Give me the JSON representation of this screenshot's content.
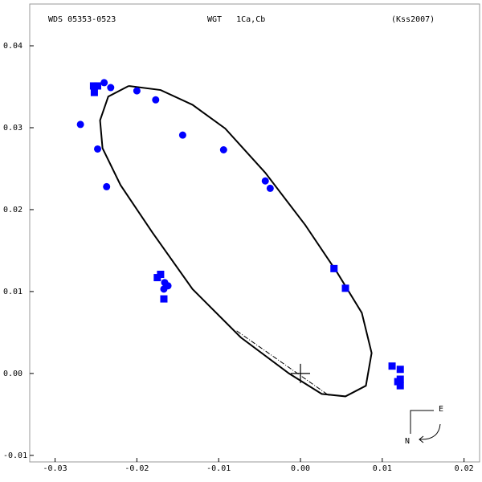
{
  "chart_data": {
    "type": "scatter",
    "title": "WDS 05353-0523",
    "subtitle": "WGT   1Ca,Cb",
    "reference": "(Kss2007)",
    "compass": {
      "east": "E",
      "north": "N"
    },
    "xlim": [
      -0.0331,
      0.0219
    ],
    "ylim": [
      -0.0108,
      0.0451
    ],
    "xticks": [
      -0.03,
      -0.02,
      -0.01,
      {
        "value": 0,
        "label": "0.00"
      },
      0.01,
      0.02
    ],
    "yticks": [
      0.04,
      0.03,
      0.02,
      0.01,
      {
        "value": 0,
        "label": "0.00"
      },
      -0.01
    ],
    "grid": false,
    "primary": {
      "x": 0,
      "y": 0
    },
    "orbit": {
      "color": "#000000",
      "x": [
        -0.021,
        -0.0171,
        -0.0132,
        -0.0092,
        -0.0043,
        0.0006,
        0.0045,
        0.0075,
        0.0087,
        0.008,
        0.0055,
        0.0026,
        -0.0014,
        -0.0073,
        -0.0132,
        -0.0181,
        -0.022,
        -0.0242,
        -0.0245,
        -0.0235,
        -0.021
      ],
      "y": [
        0.0351,
        0.0346,
        0.0328,
        0.0299,
        0.0245,
        0.0181,
        0.0123,
        0.0074,
        0.0025,
        -0.0015,
        -0.0028,
        -0.0025,
        0.0,
        0.0044,
        0.0103,
        0.0172,
        0.023,
        0.0275,
        0.0309,
        0.0338,
        0.0351
      ]
    },
    "line_of_nodes": {
      "color": "#000000",
      "x": [
        -0.0078,
        0.0035
      ],
      "y": [
        0.0052,
        -0.0027
      ]
    },
    "series": [
      {
        "marker": "square",
        "color": "#0000ff",
        "x": [
          -0.0253,
          -0.0248,
          -0.0252,
          -0.0175,
          -0.0171,
          -0.0167,
          0.0041,
          0.0055,
          0.0112,
          0.0122,
          0.0122,
          0.0122,
          0.0119
        ],
        "values": [
          0.0351,
          0.0351,
          0.0343,
          0.0117,
          0.0121,
          0.0091,
          0.0128,
          0.0104,
          0.0009,
          0.0005,
          -0.0007,
          -0.0015,
          -0.001
        ]
      },
      {
        "marker": "circle",
        "color": "#0000ff",
        "x": [
          -0.024,
          -0.0232,
          -0.0269,
          -0.0248,
          -0.0237,
          -0.02,
          -0.0177,
          -0.0144,
          -0.0094,
          -0.0043,
          -0.0037,
          -0.0167,
          -0.0162,
          -0.0166
        ],
        "values": [
          0.0355,
          0.0349,
          0.0304,
          0.0274,
          0.0228,
          0.0345,
          0.0334,
          0.0291,
          0.0273,
          0.0235,
          0.0226,
          0.0103,
          0.0107,
          0.0111
        ]
      }
    ]
  }
}
